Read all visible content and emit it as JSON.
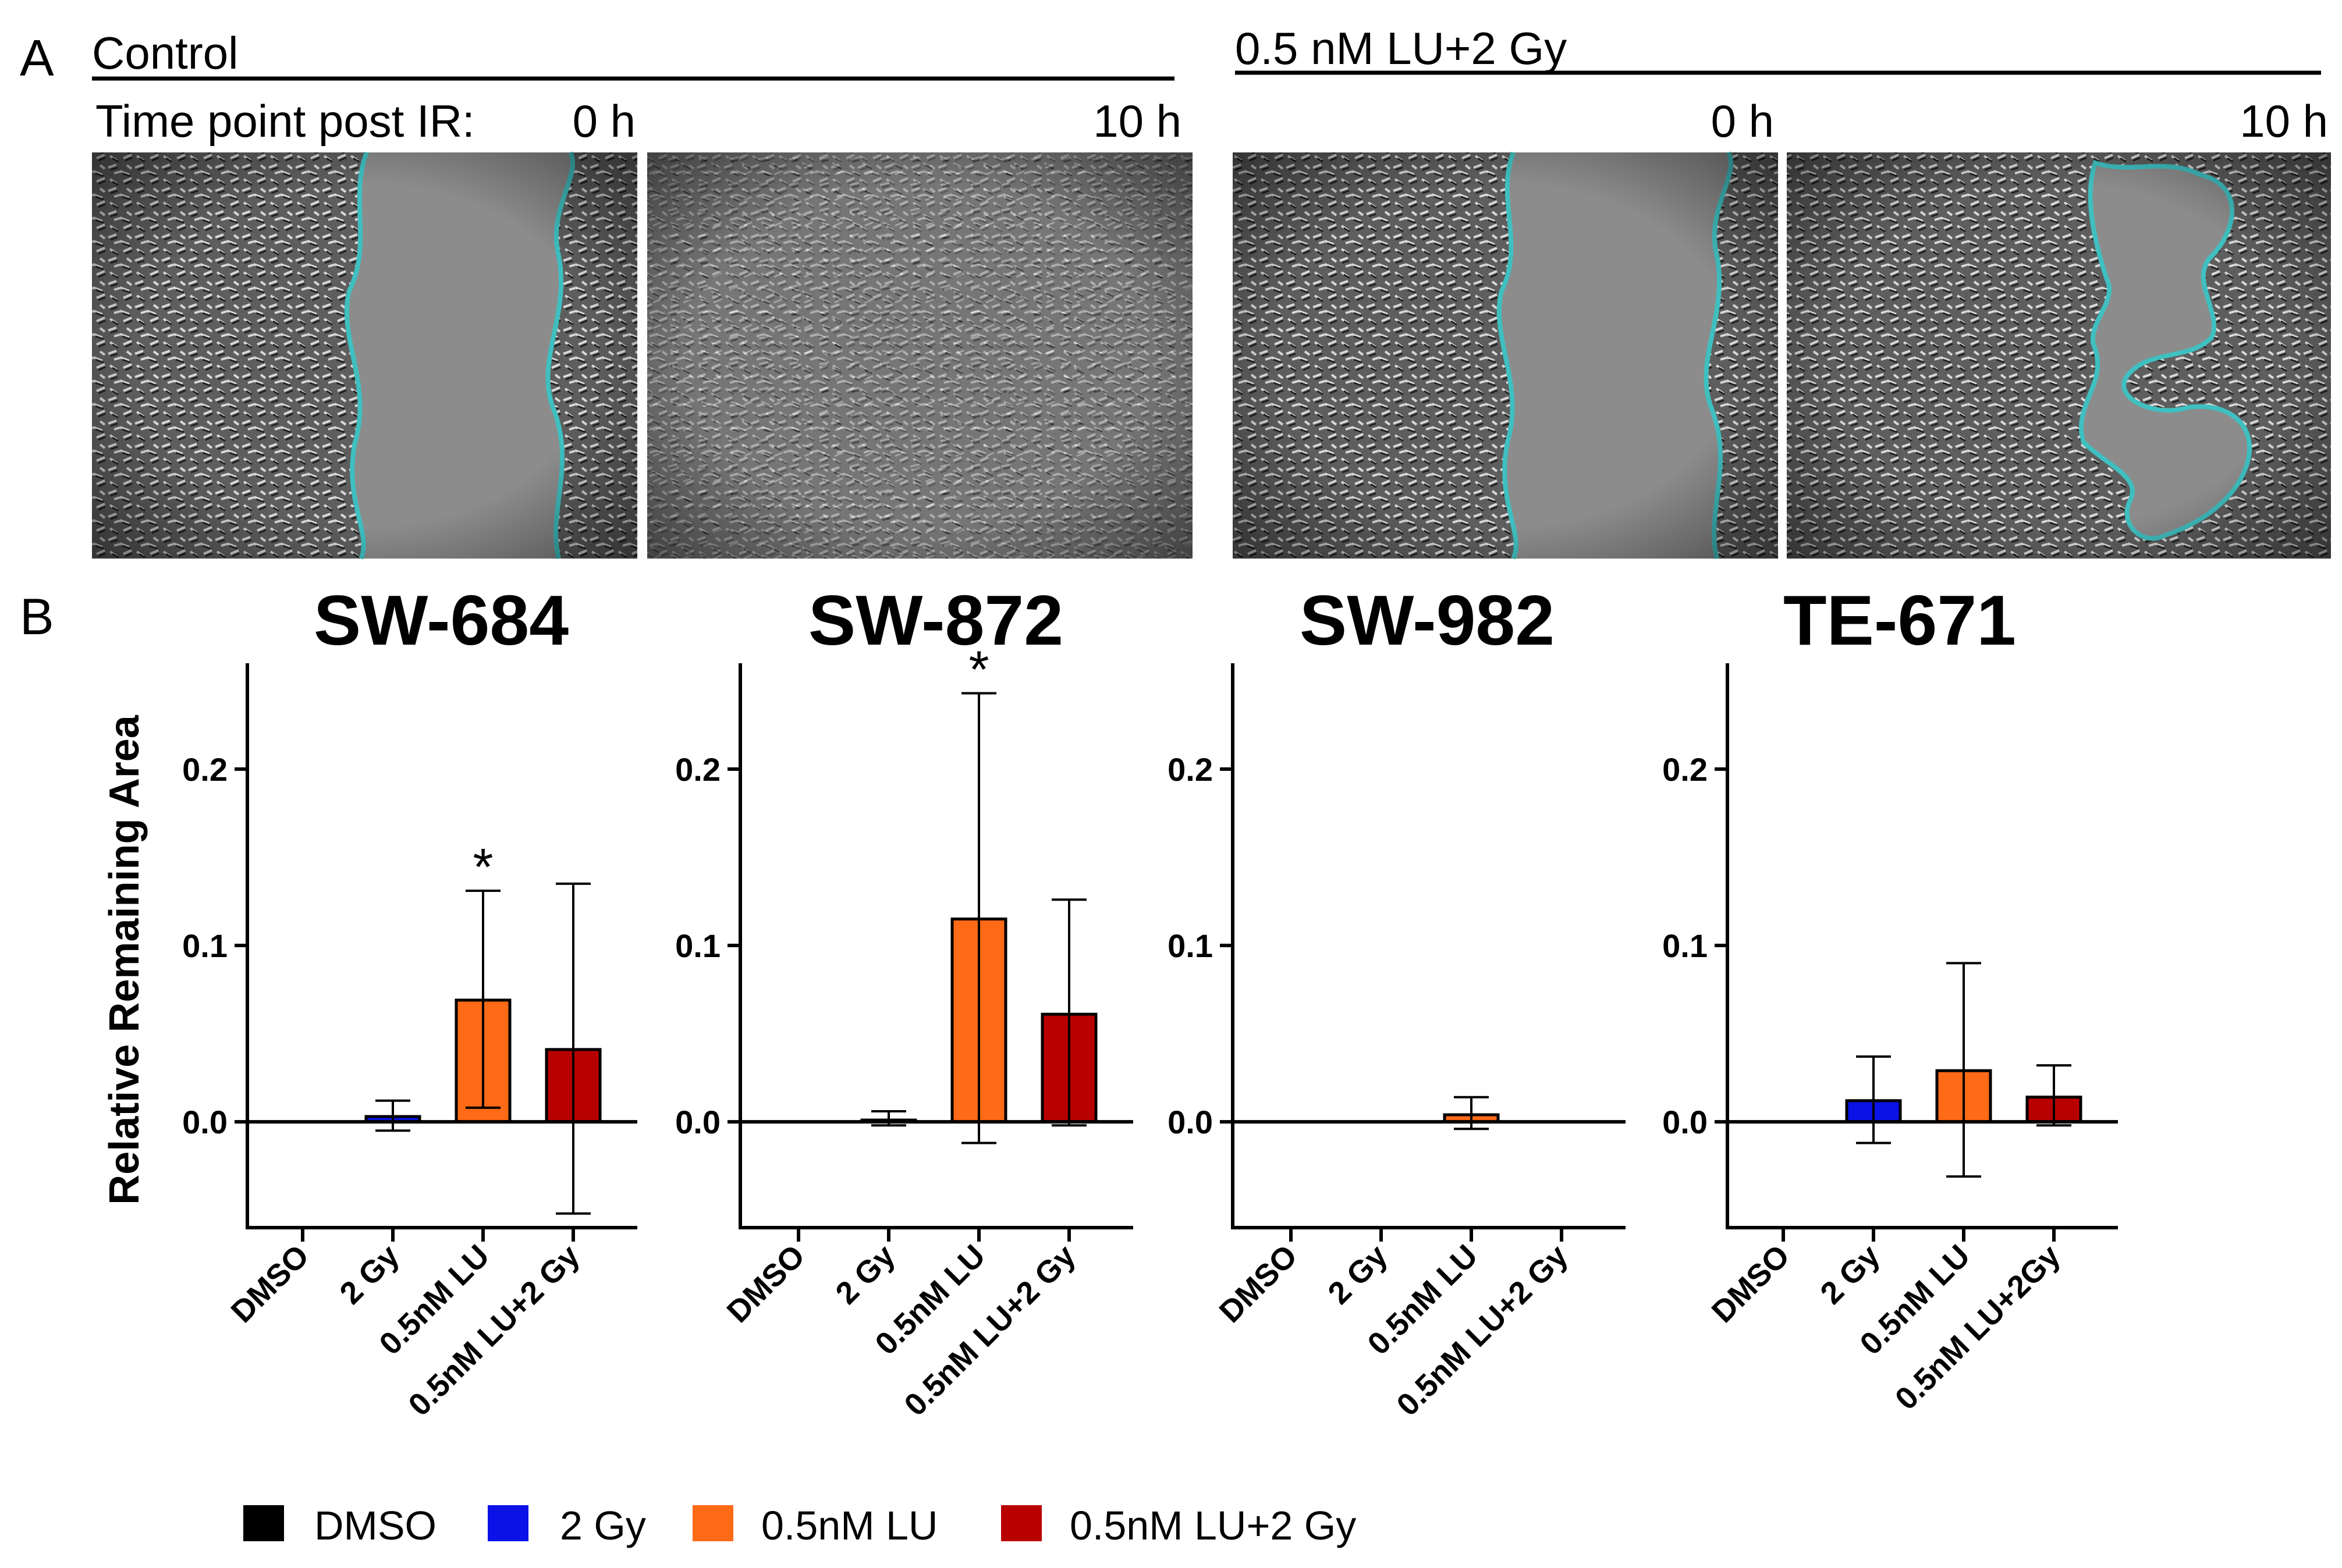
{
  "panel_a": {
    "letter": "A",
    "group_left": "Control",
    "group_right": "0.5 nM LU+2 Gy",
    "row_label": "Time point post IR:",
    "time_points": [
      "0 h",
      "10 h",
      "0 h",
      "10 h"
    ],
    "outline_color": "#3fbfc0"
  },
  "panel_b": {
    "letter": "B",
    "ylabel": "Relative Remaining Area"
  },
  "legend": [
    {
      "label": "DMSO",
      "color": "#000000"
    },
    {
      "label": "2 Gy",
      "color": "#0a12e6"
    },
    {
      "label": "0.5nM LU",
      "color": "#ff6a17"
    },
    {
      "label": "0.5nM LU+2 Gy",
      "color": "#b80000"
    }
  ],
  "chart_data": [
    {
      "type": "bar",
      "title": "SW-684",
      "categories": [
        "DMSO",
        "2 Gy",
        "0.5nM LU",
        "0.5nM LU+2 Gy"
      ],
      "values": [
        0.0,
        0.003,
        0.069,
        0.041
      ],
      "err_low": [
        0.0,
        -0.005,
        0.008,
        -0.052
      ],
      "err_high": [
        0.0,
        0.012,
        0.131,
        0.135
      ],
      "colors": [
        "#000000",
        "#0a12e6",
        "#ff6a17",
        "#b80000"
      ],
      "significance": [
        "",
        "",
        "*",
        ""
      ],
      "ylim": [
        -0.06,
        0.26
      ],
      "yticks": [
        "0.0",
        "0.1",
        "0.2"
      ],
      "ylabel": "Relative Remaining Area"
    },
    {
      "type": "bar",
      "title": "SW-872",
      "categories": [
        "DMSO",
        "2 Gy",
        "0.5nM LU",
        "0.5nM LU+2 Gy"
      ],
      "values": [
        0.0,
        0.001,
        0.115,
        0.061
      ],
      "err_low": [
        0.0,
        -0.002,
        -0.012,
        -0.002
      ],
      "err_high": [
        0.0,
        0.006,
        0.243,
        0.126
      ],
      "colors": [
        "#000000",
        "#0a12e6",
        "#ff6a17",
        "#b80000"
      ],
      "significance": [
        "",
        "",
        "*",
        ""
      ],
      "ylim": [
        -0.06,
        0.26
      ],
      "yticks": [
        "0.0",
        "0.1",
        "0.2"
      ],
      "ylabel": ""
    },
    {
      "type": "bar",
      "title": "SW-982",
      "categories": [
        "DMSO",
        "2 Gy",
        "0.5nM LU",
        "0.5nM LU+2 Gy"
      ],
      "values": [
        0.0,
        0.0,
        0.004,
        0.0
      ],
      "err_low": [
        0.0,
        0.0,
        -0.004,
        0.0
      ],
      "err_high": [
        0.0,
        0.0,
        0.014,
        0.0
      ],
      "colors": [
        "#000000",
        "#0a12e6",
        "#ff6a17",
        "#b80000"
      ],
      "significance": [
        "",
        "",
        "",
        ""
      ],
      "ylim": [
        -0.06,
        0.26
      ],
      "yticks": [
        "0.0",
        "0.1",
        "0.2"
      ],
      "ylabel": ""
    },
    {
      "type": "bar",
      "title": "TE-671",
      "categories": [
        "DMSO",
        "2 Gy",
        "0.5nM LU",
        "0.5nM LU+2Gy"
      ],
      "values": [
        0.0,
        0.012,
        0.029,
        0.014
      ],
      "err_low": [
        0.0,
        -0.012,
        -0.031,
        -0.002
      ],
      "err_high": [
        0.0,
        0.037,
        0.09,
        0.032
      ],
      "colors": [
        "#000000",
        "#0a12e6",
        "#ff6a17",
        "#b80000"
      ],
      "significance": [
        "",
        "",
        "",
        ""
      ],
      "ylim": [
        -0.06,
        0.26
      ],
      "yticks": [
        "0.0",
        "0.1",
        "0.2"
      ],
      "ylabel": ""
    }
  ]
}
